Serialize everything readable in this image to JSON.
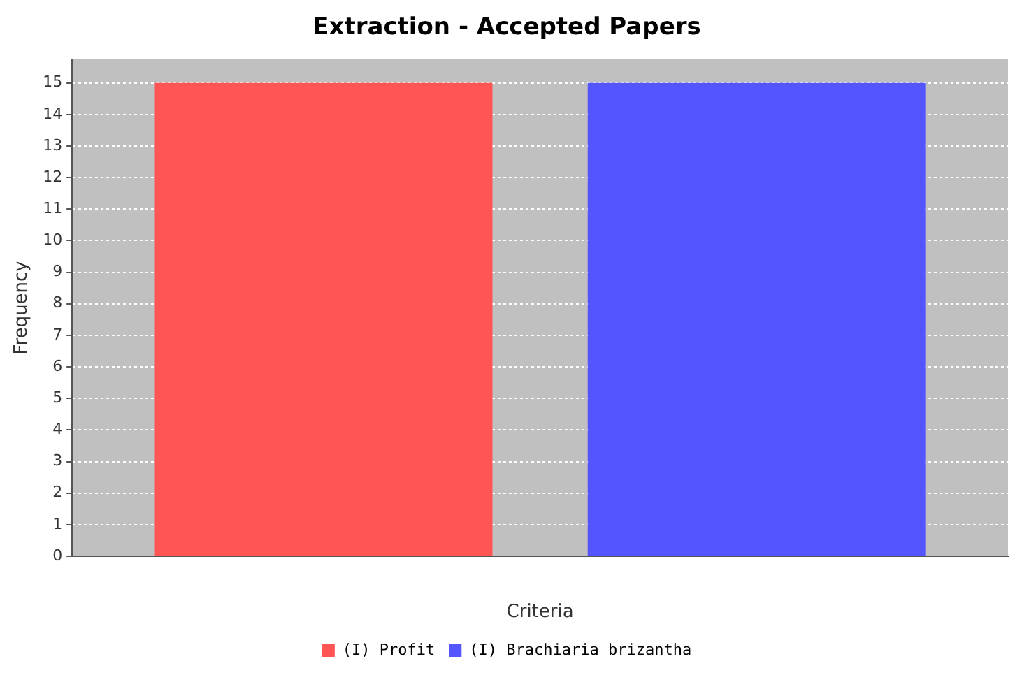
{
  "chart_data": {
    "type": "bar",
    "title": "Extraction - Accepted Papers",
    "xlabel": "Criteria",
    "ylabel": "Frequency",
    "categories": [
      null
    ],
    "series": [
      {
        "name": "(I) Profit",
        "color": "#ff5555",
        "values": [
          15
        ]
      },
      {
        "name": "(I) Brachiaria brizantha",
        "color": "#5555ff",
        "values": [
          15
        ]
      }
    ],
    "ylim": [
      0,
      15.75
    ],
    "yticks": [
      0,
      1,
      2,
      3,
      4,
      5,
      6,
      7,
      8,
      9,
      10,
      11,
      12,
      13,
      14,
      15
    ],
    "grid": "y",
    "legend": "bottom"
  }
}
